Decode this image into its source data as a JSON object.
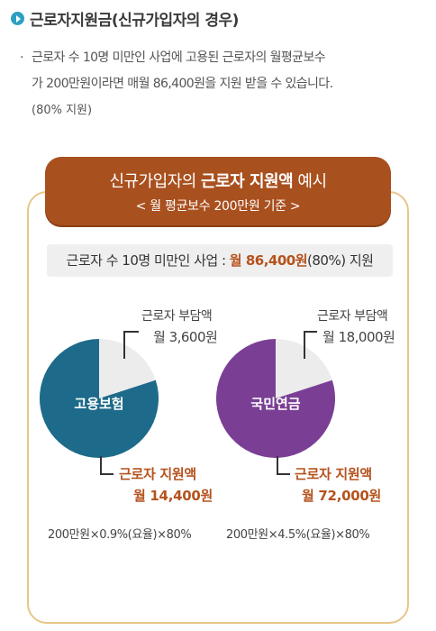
{
  "heading": {
    "title": "근로자지원금(신규가입자의 경우)"
  },
  "description": {
    "line1": "근로자 수 10명 미만인 사업에 고용된 근로자의 월평균보수",
    "line2": "가 200만원이라면 매월 86,400원을 지원 받을 수 있습니다.",
    "line3": "(80% 지원)"
  },
  "banner": {
    "title_pre": "신규가입자의 ",
    "title_bold": "근로자 지원액",
    "title_post": " 예시",
    "subtitle": "< 월 평균보수 200만원 기준 >"
  },
  "summary": {
    "prefix": "근로자 수 10명 미만인 사업 : ",
    "highlight": "월 86,400원",
    "suffix": "(80%) 지원"
  },
  "colors": {
    "banner": "#a9501f",
    "accent": "#b5531e",
    "employment_insurance": "#1d6a8a",
    "national_pension": "#7a3f95",
    "worker_share": "#ececec"
  },
  "chart_data": [
    {
      "type": "pie",
      "center_label": "고용보험",
      "slices": [
        {
          "label": "근로자 부담액",
          "amount_text": "월 3,600원",
          "value": 3600
        },
        {
          "label": "근로자 지원액",
          "amount_text": "월 14,400원",
          "value": 14400
        }
      ],
      "formula": "200만원×0.9%(요율)×80%"
    },
    {
      "type": "pie",
      "center_label": "국민연금",
      "slices": [
        {
          "label": "근로자 부담액",
          "amount_text": "월 18,000원",
          "value": 18000
        },
        {
          "label": "근로자 지원액",
          "amount_text": "월 72,000원",
          "value": 72000
        }
      ],
      "formula": "200만원×4.5%(요율)×80%"
    }
  ]
}
